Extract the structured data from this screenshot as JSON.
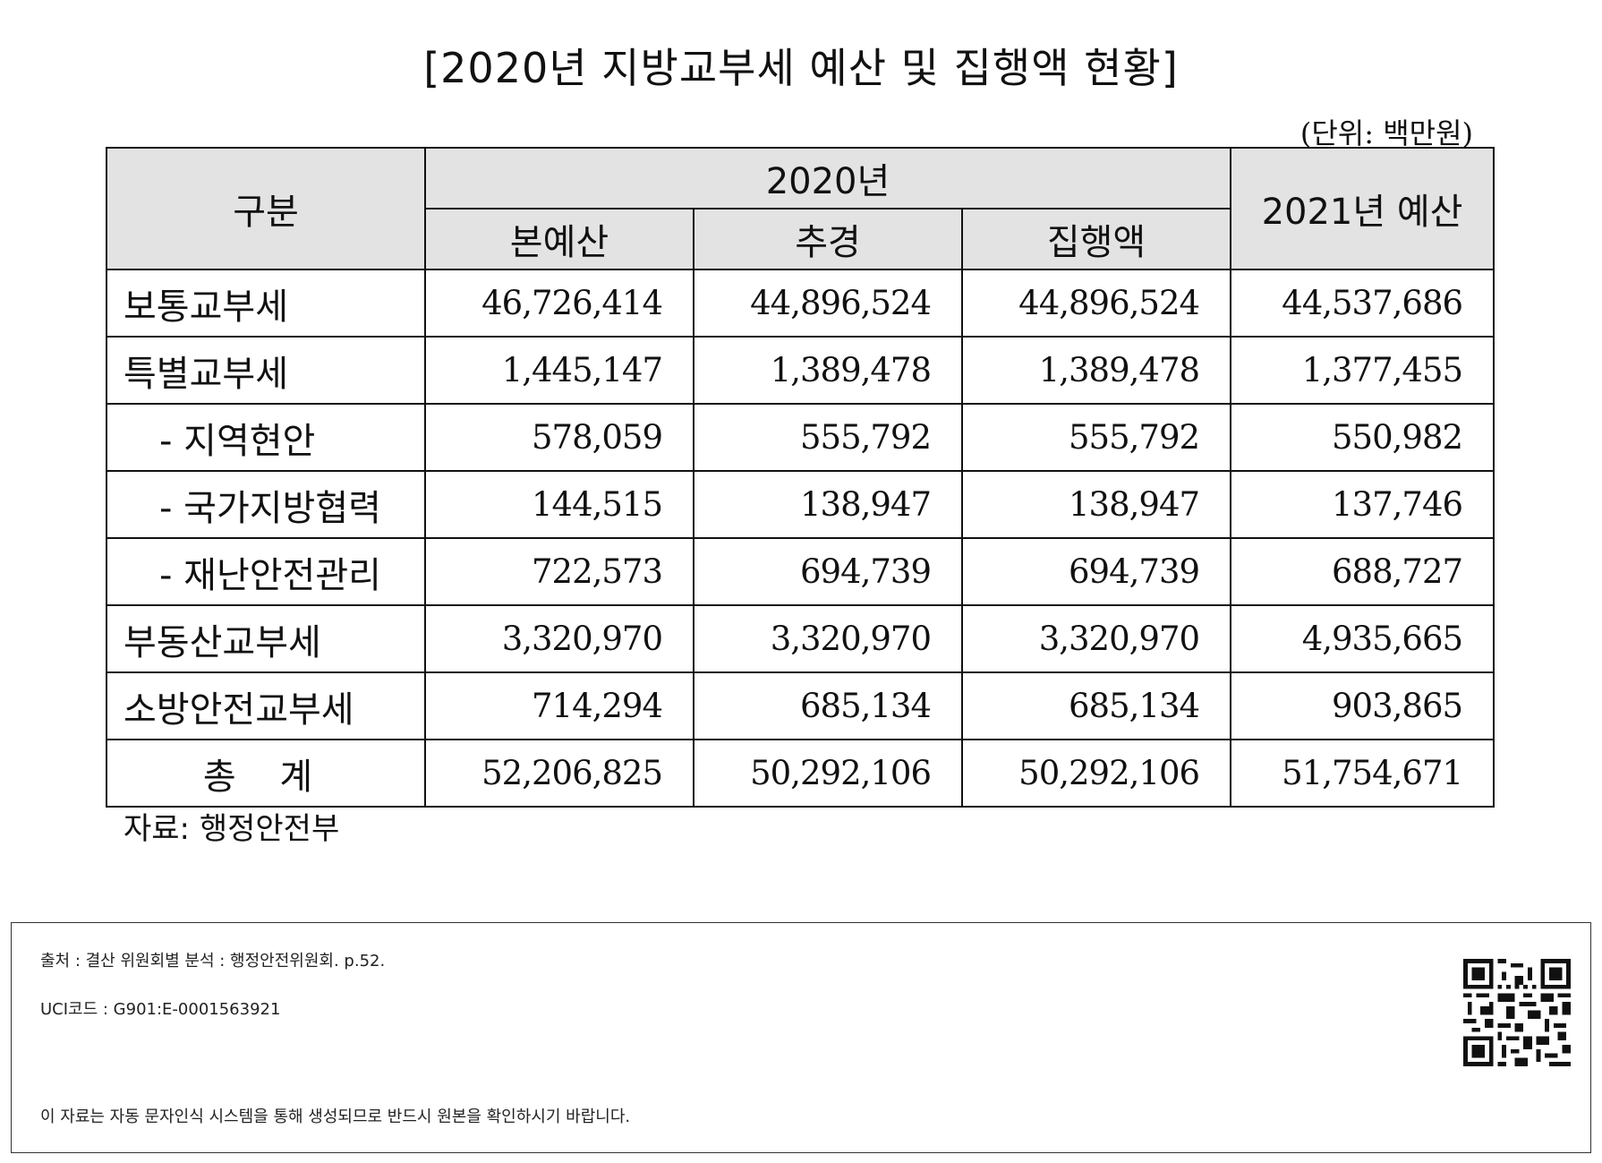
{
  "title": "[2020년 지방교부세 예산 및 집행액 현황]",
  "unit": "(단위: 백만원)",
  "table": {
    "header": {
      "category": "구분",
      "year_group": "2020년",
      "sub": [
        "본예산",
        "추경",
        "집행액"
      ],
      "next_year": "2021년 예산"
    },
    "rows": [
      {
        "label": "보통교부세",
        "indent": false,
        "values": [
          "46,726,414",
          "44,896,524",
          "44,896,524",
          "44,537,686"
        ]
      },
      {
        "label": "특별교부세",
        "indent": false,
        "values": [
          "1,445,147",
          "1,389,478",
          "1,389,478",
          "1,377,455"
        ]
      },
      {
        "label": "- 지역현안",
        "indent": true,
        "values": [
          "578,059",
          "555,792",
          "555,792",
          "550,982"
        ]
      },
      {
        "label": "- 국가지방협력",
        "indent": true,
        "values": [
          "144,515",
          "138,947",
          "138,947",
          "137,746"
        ]
      },
      {
        "label": "- 재난안전관리",
        "indent": true,
        "values": [
          "722,573",
          "694,739",
          "694,739",
          "688,727"
        ]
      },
      {
        "label": "부동산교부세",
        "indent": false,
        "values": [
          "3,320,970",
          "3,320,970",
          "3,320,970",
          "4,935,665"
        ]
      },
      {
        "label": "소방안전교부세",
        "indent": false,
        "values": [
          "714,294",
          "685,134",
          "685,134",
          "903,865"
        ]
      },
      {
        "label": "총 계",
        "indent": false,
        "total": true,
        "values": [
          "52,206,825",
          "50,292,106",
          "50,292,106",
          "51,754,671"
        ]
      }
    ]
  },
  "source": "자료: 행정안전부",
  "footer": {
    "citation": "출처 : 결산 위원회별 분석 : 행정안전위원회. p.52.",
    "uci": "UCI코드 : G901:E-0001563921",
    "notice": "이 자료는 자동 문자인식 시스템을 통해 생성되므로 반드시 원본을 확인하시기 바랍니다.",
    "qr_icon": "qr-code-icon"
  }
}
